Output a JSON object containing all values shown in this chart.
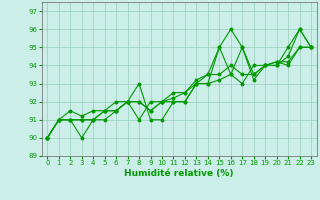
{
  "title": "",
  "xlabel": "Humidité relative (%)",
  "ylabel": "",
  "xlim": [
    -0.5,
    23.5
  ],
  "ylim": [
    89,
    97.5
  ],
  "yticks": [
    89,
    90,
    91,
    92,
    93,
    94,
    95,
    96,
    97
  ],
  "xticks": [
    0,
    1,
    2,
    3,
    4,
    5,
    6,
    7,
    8,
    9,
    10,
    11,
    12,
    13,
    14,
    15,
    16,
    17,
    18,
    19,
    20,
    21,
    22,
    23
  ],
  "bg_color": "#cceee8",
  "grid_color": "#99ccbb",
  "line_color": "#009900",
  "series": [
    [
      90,
      91,
      91,
      90,
      91,
      91,
      91.5,
      92,
      93,
      91,
      91,
      92,
      92,
      93,
      93,
      95,
      96,
      95,
      93.2,
      94,
      94,
      95,
      96,
      95
    ],
    [
      90,
      91,
      91,
      91,
      91,
      91.5,
      91.5,
      92,
      92,
      91.5,
      92,
      92,
      92,
      93,
      93,
      93.2,
      93.5,
      95,
      93.5,
      94,
      94.2,
      94,
      95,
      95
    ],
    [
      90,
      91,
      91,
      91,
      91,
      91.5,
      91.5,
      92,
      92,
      91.5,
      92,
      92.5,
      92.5,
      93.2,
      93.5,
      93.5,
      94,
      93.5,
      93.5,
      94,
      94.2,
      94.2,
      95,
      95
    ],
    [
      90,
      91,
      91.5,
      91.2,
      91.5,
      91.5,
      92,
      92,
      91,
      92,
      92,
      92.2,
      92.5,
      93,
      93.5,
      95,
      93.5,
      93,
      94,
      94,
      94,
      94.5,
      96,
      95
    ]
  ]
}
